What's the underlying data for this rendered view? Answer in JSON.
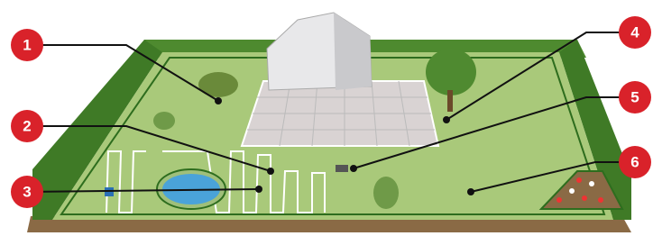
{
  "callouts": [
    {
      "label": "1"
    },
    {
      "label": "2"
    },
    {
      "label": "3"
    },
    {
      "label": "4"
    },
    {
      "label": "5"
    },
    {
      "label": "6"
    }
  ]
}
